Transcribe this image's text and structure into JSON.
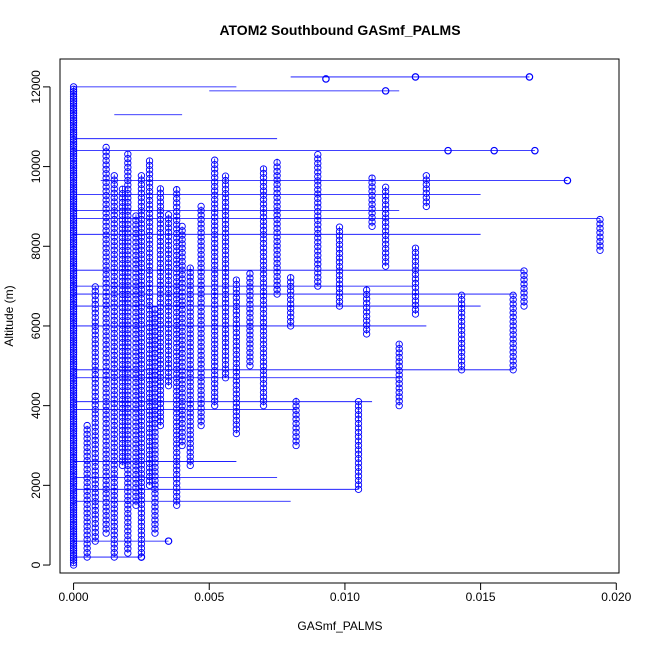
{
  "chart_data": {
    "type": "scatter",
    "title": "ATOM2 Southbound GASmf_PALMS",
    "xlabel": "GASmf_PALMS",
    "ylabel": "Altitude (m)",
    "xlim": [
      -0.0005,
      0.0201
    ],
    "ylim": [
      -200,
      12700
    ],
    "x_ticks": [
      0.0,
      0.005,
      0.01,
      0.015,
      0.02
    ],
    "x_tick_labels": [
      "0.000",
      "0.005",
      "0.010",
      "0.015",
      "0.020"
    ],
    "y_ticks": [
      0,
      2000,
      4000,
      6000,
      8000,
      10000,
      12000
    ],
    "y_tick_labels": [
      "0",
      "2000",
      "4000",
      "6000",
      "8000",
      "10000",
      "12000"
    ],
    "grid": false,
    "style": "points-and-lines",
    "series_color": "#0000ff",
    "columns": [
      {
        "x": 0.0,
        "y0": 0,
        "y1": 12000,
        "step": 60
      },
      {
        "x": 0.0005,
        "y0": 200,
        "y1": 3500,
        "step": 110
      },
      {
        "x": 0.0008,
        "y0": 600,
        "y1": 7000,
        "step": 110
      },
      {
        "x": 0.0012,
        "y0": 800,
        "y1": 10500,
        "step": 110
      },
      {
        "x": 0.0015,
        "y0": 200,
        "y1": 9800,
        "step": 110
      },
      {
        "x": 0.0018,
        "y0": 2500,
        "y1": 9500,
        "step": 110
      },
      {
        "x": 0.002,
        "y0": 300,
        "y1": 10400,
        "step": 110
      },
      {
        "x": 0.0023,
        "y0": 1500,
        "y1": 8800,
        "step": 110
      },
      {
        "x": 0.0025,
        "y0": 200,
        "y1": 9800,
        "step": 110
      },
      {
        "x": 0.0028,
        "y0": 2000,
        "y1": 10200,
        "step": 110
      },
      {
        "x": 0.003,
        "y0": 800,
        "y1": 6500,
        "step": 110
      },
      {
        "x": 0.0032,
        "y0": 3500,
        "y1": 9500,
        "step": 110
      },
      {
        "x": 0.0035,
        "y0": 4500,
        "y1": 8800,
        "step": 110
      },
      {
        "x": 0.0038,
        "y0": 1500,
        "y1": 9500,
        "step": 110
      },
      {
        "x": 0.004,
        "y0": 3000,
        "y1": 8500,
        "step": 110
      },
      {
        "x": 0.0043,
        "y0": 2500,
        "y1": 7500,
        "step": 110
      },
      {
        "x": 0.0047,
        "y0": 3500,
        "y1": 9000,
        "step": 110
      },
      {
        "x": 0.0052,
        "y0": 4000,
        "y1": 10200,
        "step": 110
      },
      {
        "x": 0.0056,
        "y0": 4700,
        "y1": 9800,
        "step": 110
      },
      {
        "x": 0.006,
        "y0": 3300,
        "y1": 7200,
        "step": 110
      },
      {
        "x": 0.0065,
        "y0": 5000,
        "y1": 7400,
        "step": 110
      },
      {
        "x": 0.007,
        "y0": 4000,
        "y1": 10000,
        "step": 110
      },
      {
        "x": 0.0075,
        "y0": 6800,
        "y1": 10200,
        "step": 110
      },
      {
        "x": 0.008,
        "y0": 6000,
        "y1": 7300,
        "step": 110
      },
      {
        "x": 0.0082,
        "y0": 3000,
        "y1": 4200,
        "step": 110
      },
      {
        "x": 0.009,
        "y0": 7000,
        "y1": 10300,
        "step": 110
      },
      {
        "x": 0.0098,
        "y0": 6500,
        "y1": 8500,
        "step": 110
      },
      {
        "x": 0.0105,
        "y0": 1900,
        "y1": 4100,
        "step": 110
      },
      {
        "x": 0.0108,
        "y0": 5800,
        "y1": 7000,
        "step": 110
      },
      {
        "x": 0.011,
        "y0": 8500,
        "y1": 9800,
        "step": 110
      },
      {
        "x": 0.0115,
        "y0": 7500,
        "y1": 9500,
        "step": 110
      },
      {
        "x": 0.012,
        "y0": 4000,
        "y1": 5600,
        "step": 110
      },
      {
        "x": 0.0126,
        "y0": 6300,
        "y1": 8000,
        "step": 110
      },
      {
        "x": 0.013,
        "y0": 9000,
        "y1": 9800,
        "step": 110
      },
      {
        "x": 0.0143,
        "y0": 4900,
        "y1": 6800,
        "step": 110
      },
      {
        "x": 0.0162,
        "y0": 4900,
        "y1": 6800,
        "step": 110
      },
      {
        "x": 0.0166,
        "y0": 6500,
        "y1": 7400,
        "step": 110
      },
      {
        "x": 0.0194,
        "y0": 7900,
        "y1": 8700,
        "step": 110
      }
    ],
    "horizontal_lines": [
      {
        "y": 12000,
        "x0": 0.0,
        "x1": 0.006
      },
      {
        "y": 12250,
        "x0": 0.008,
        "x1": 0.0168
      },
      {
        "y": 11900,
        "x0": 0.005,
        "x1": 0.012
      },
      {
        "y": 11300,
        "x0": 0.0015,
        "x1": 0.004
      },
      {
        "y": 10700,
        "x0": 0.0,
        "x1": 0.0075
      },
      {
        "y": 10400,
        "x0": 0.0,
        "x1": 0.017
      },
      {
        "y": 9650,
        "x0": 0.001,
        "x1": 0.0182
      },
      {
        "y": 9300,
        "x0": 0.0,
        "x1": 0.015
      },
      {
        "y": 8900,
        "x0": 0.0,
        "x1": 0.012
      },
      {
        "y": 8700,
        "x0": 0.0,
        "x1": 0.0194
      },
      {
        "y": 8300,
        "x0": 0.0,
        "x1": 0.015
      },
      {
        "y": 7400,
        "x0": 0.0,
        "x1": 0.0166
      },
      {
        "y": 7000,
        "x0": 0.0,
        "x1": 0.0125
      },
      {
        "y": 6800,
        "x0": 0.0,
        "x1": 0.0163
      },
      {
        "y": 6500,
        "x0": 0.0,
        "x1": 0.015
      },
      {
        "y": 6000,
        "x0": 0.0,
        "x1": 0.013
      },
      {
        "y": 4900,
        "x0": 0.0,
        "x1": 0.0162
      },
      {
        "y": 4700,
        "x0": 0.0,
        "x1": 0.012
      },
      {
        "y": 4100,
        "x0": 0.0,
        "x1": 0.011
      },
      {
        "y": 3900,
        "x0": 0.0,
        "x1": 0.0082
      },
      {
        "y": 2600,
        "x0": 0.0,
        "x1": 0.006
      },
      {
        "y": 2200,
        "x0": 0.0,
        "x1": 0.0075
      },
      {
        "y": 1900,
        "x0": 0.0,
        "x1": 0.0105
      },
      {
        "y": 1600,
        "x0": 0.0,
        "x1": 0.008
      },
      {
        "y": 600,
        "x0": 0.0,
        "x1": 0.0035
      },
      {
        "y": 200,
        "x0": 0.0,
        "x1": 0.0025
      }
    ],
    "isolated_points": [
      {
        "x": 0.0126,
        "y": 12250
      },
      {
        "x": 0.0168,
        "y": 12250
      },
      {
        "x": 0.0093,
        "y": 12200
      },
      {
        "x": 0.0115,
        "y": 11900
      },
      {
        "x": 0.017,
        "y": 10400
      },
      {
        "x": 0.0182,
        "y": 9650
      },
      {
        "x": 0.0155,
        "y": 10400
      },
      {
        "x": 0.0138,
        "y": 10400
      },
      {
        "x": 0.0035,
        "y": 600
      },
      {
        "x": 0.0025,
        "y": 200
      }
    ]
  }
}
